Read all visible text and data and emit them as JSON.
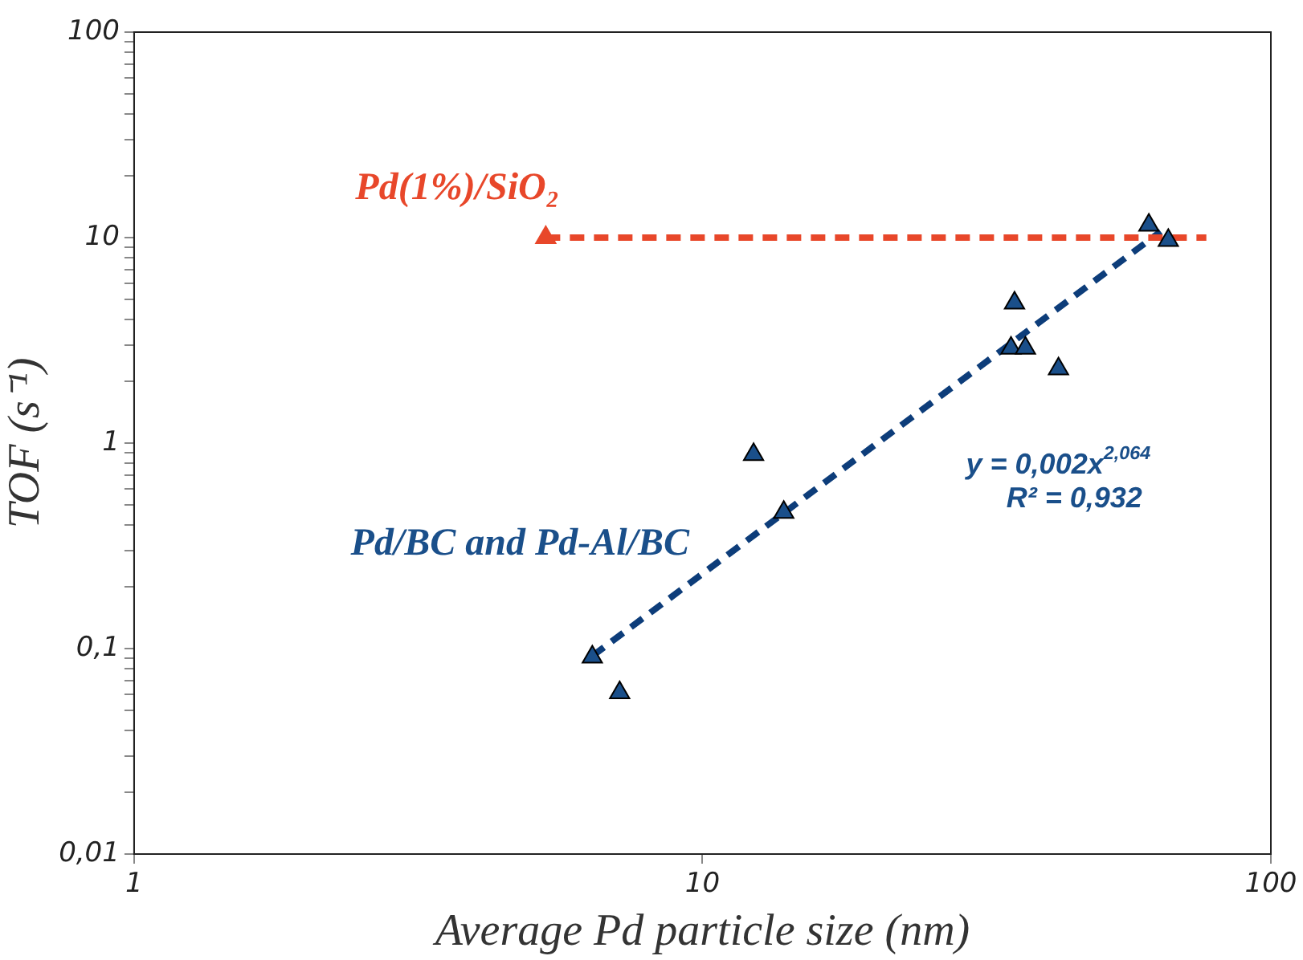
{
  "chart_data": {
    "type": "scatter",
    "xlabel": "Average Pd particle size (nm)",
    "ylabel": "TOF (s⁻¹)",
    "log": "xy",
    "xlim": [
      1,
      100
    ],
    "ylim": [
      0.01,
      100
    ],
    "xticks": [
      1,
      10,
      100
    ],
    "yticks": [
      {
        "value": 0.01,
        "label": "0,01"
      },
      {
        "value": 0.02,
        "label": null
      },
      {
        "value": 0.03,
        "label": null
      },
      {
        "value": 0.04,
        "label": null
      },
      {
        "value": 0.05,
        "label": null
      },
      {
        "value": 0.06,
        "label": null
      },
      {
        "value": 0.07,
        "label": null
      },
      {
        "value": 0.08,
        "label": null
      },
      {
        "value": 0.09,
        "label": null
      },
      {
        "value": 0.1,
        "label": "0,1"
      },
      {
        "value": 0.2,
        "label": null
      },
      {
        "value": 0.3,
        "label": null
      },
      {
        "value": 0.4,
        "label": null
      },
      {
        "value": 0.5,
        "label": null
      },
      {
        "value": 0.6,
        "label": null
      },
      {
        "value": 0.7,
        "label": null
      },
      {
        "value": 0.8,
        "label": null
      },
      {
        "value": 0.9,
        "label": null
      },
      1,
      {
        "value": 2,
        "label": null
      },
      {
        "value": 3,
        "label": null
      },
      {
        "value": 4,
        "label": null
      },
      {
        "value": 5,
        "label": null
      },
      {
        "value": 6,
        "label": null
      },
      {
        "value": 7,
        "label": null
      },
      {
        "value": 8,
        "label": null
      },
      {
        "value": 9,
        "label": null
      },
      10,
      {
        "value": 20,
        "label": null
      },
      {
        "value": 30,
        "label": null
      },
      {
        "value": 40,
        "label": null
      },
      {
        "value": 50,
        "label": null
      },
      {
        "value": 60,
        "label": null
      },
      {
        "value": 70,
        "label": null
      },
      {
        "value": 80,
        "label": null
      },
      {
        "value": 90,
        "label": null
      },
      100
    ],
    "grid": false,
    "legend": false,
    "marker": "triangle",
    "series": [
      {
        "name": "Pd(1%)/SiO₂",
        "color": "#e8472a",
        "x": [
          5.3
        ],
        "values": [
          10
        ]
      },
      {
        "type": "line",
        "color": "#e8472a",
        "marker": "none",
        "line_style": "dashed",
        "x": [
          5.3,
          77
        ],
        "values": [
          10,
          10
        ]
      },
      {
        "name": "Pd/BC and Pd-Al/BC",
        "color": "#1a4f8a",
        "x": [
          6.4,
          7.15,
          12.3,
          13.9,
          35.4,
          34.9,
          37,
          42.3,
          61,
          66
        ],
        "values": [
          0.091,
          0.061,
          0.88,
          0.46,
          4.8,
          2.9,
          2.9,
          2.3,
          11.5,
          9.7
        ]
      },
      {
        "type": "line",
        "color": "#0d3d7a",
        "marker": "none",
        "line_style": "dashed",
        "x": [
          6.4,
          64
        ],
        "values": [
          0.092,
          10.7
        ]
      }
    ],
    "annotations": [
      "y = 0,002x$^{2,064}$",
      "R² = 0,932"
    ]
  }
}
